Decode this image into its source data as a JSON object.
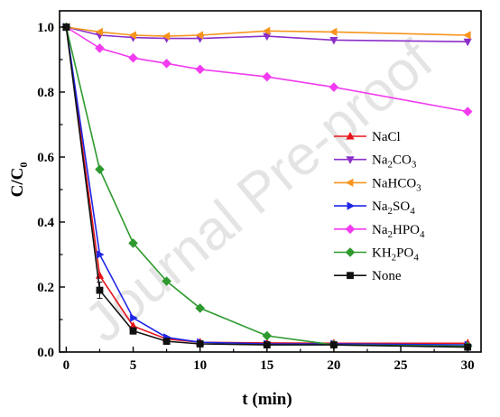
{
  "chart_data": {
    "type": "line",
    "xlabel": "t (min)",
    "ylabel": "C/C",
    "ylabel_sub": "0",
    "xlim": [
      -0.5,
      31
    ],
    "ylim": [
      0,
      1.05
    ],
    "xticks": [
      0,
      5,
      10,
      15,
      20,
      25,
      30
    ],
    "yticks": [
      0.0,
      0.2,
      0.4,
      0.6,
      0.8,
      1.0
    ],
    "xtick_labels": [
      "0",
      "5",
      "10",
      "15",
      "20",
      "25",
      "30"
    ],
    "ytick_labels": [
      "0.0",
      "0.2",
      "0.4",
      "0.6",
      "0.8",
      "1.0"
    ],
    "grid": false,
    "legend_position": "right",
    "watermark": "Journal Pre-proof",
    "series": [
      {
        "name": "NaCl",
        "label": {
          "main": "NaCl",
          "parts": []
        },
        "color": "#e8141c",
        "marker": "triangle-up",
        "x": [
          0,
          2.5,
          5,
          7.5,
          10,
          15,
          20,
          30
        ],
        "y": [
          1.0,
          0.235,
          0.08,
          0.04,
          0.03,
          0.028,
          0.027,
          0.027
        ]
      },
      {
        "name": "Na2CO3",
        "label": {
          "main": "Na",
          "parts": [
            [
              "sub",
              "2"
            ],
            [
              "txt",
              "CO"
            ],
            [
              "sub",
              "3"
            ]
          ]
        },
        "color": "#8b2fc9",
        "marker": "triangle-down",
        "x": [
          0,
          2.5,
          5,
          7.5,
          10,
          15,
          20,
          30
        ],
        "y": [
          1.0,
          0.975,
          0.968,
          0.965,
          0.965,
          0.972,
          0.96,
          0.955
        ]
      },
      {
        "name": "NaHCO3",
        "label": {
          "main": "NaHCO",
          "parts": [
            [
              "sub",
              "3"
            ]
          ]
        },
        "color": "#f7941d",
        "marker": "triangle-left",
        "x": [
          0,
          2.5,
          5,
          7.5,
          10,
          15,
          20,
          30
        ],
        "y": [
          1.0,
          0.985,
          0.975,
          0.972,
          0.975,
          0.988,
          0.985,
          0.975
        ]
      },
      {
        "name": "Na2SO4",
        "label": {
          "main": "Na",
          "parts": [
            [
              "sub",
              "2"
            ],
            [
              "txt",
              "SO"
            ],
            [
              "sub",
              "4"
            ]
          ]
        },
        "color": "#1f26e6",
        "marker": "triangle-right",
        "x": [
          0,
          2.5,
          5,
          7.5,
          10,
          15,
          20,
          30
        ],
        "y": [
          1.0,
          0.3,
          0.105,
          0.045,
          0.03,
          0.025,
          0.025,
          0.022
        ]
      },
      {
        "name": "Na2HPO4",
        "label": {
          "main": "Na",
          "parts": [
            [
              "sub",
              "2"
            ],
            [
              "txt",
              "HPO"
            ],
            [
              "sub",
              "4"
            ]
          ]
        },
        "color": "#f23bf0",
        "marker": "diamond",
        "x": [
          0,
          2.5,
          5,
          7.5,
          10,
          15,
          20,
          30
        ],
        "y": [
          1.0,
          0.935,
          0.905,
          0.888,
          0.87,
          0.847,
          0.815,
          0.74
        ]
      },
      {
        "name": "KH2PO4",
        "label": {
          "main": "KH",
          "parts": [
            [
              "sub",
              "2"
            ],
            [
              "txt",
              "PO"
            ],
            [
              "sub",
              "4"
            ]
          ]
        },
        "color": "#2e9a2e",
        "marker": "diamond",
        "x": [
          0,
          2.5,
          5,
          7.5,
          10,
          15,
          20,
          30
        ],
        "y": [
          1.0,
          0.562,
          0.335,
          0.218,
          0.135,
          0.05,
          0.022,
          0.018
        ]
      },
      {
        "name": "None",
        "label": {
          "main": "None",
          "parts": []
        },
        "color": "#111111",
        "marker": "square",
        "x": [
          0,
          2.5,
          5,
          7.5,
          10,
          15,
          20,
          30
        ],
        "y": [
          1.0,
          0.19,
          0.065,
          0.033,
          0.025,
          0.022,
          0.022,
          0.015
        ],
        "error": [
          0,
          0.025,
          0.01,
          0.005,
          0,
          0,
          0,
          0
        ]
      }
    ]
  }
}
